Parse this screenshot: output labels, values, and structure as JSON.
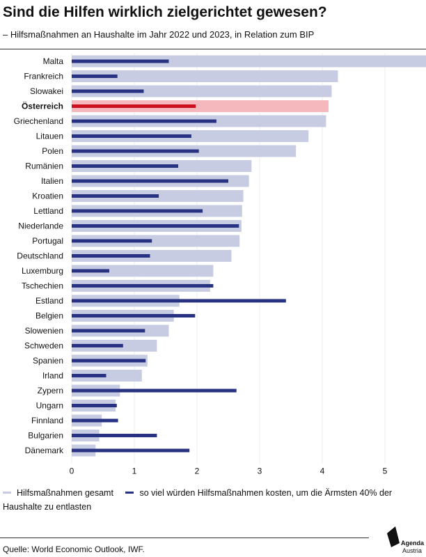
{
  "header": {
    "title": "Sind die Hilfen wirklich zielgerichtet gewesen?",
    "subtitle": "– Hilfsmaßnahmen an Haushalte im Jahr 2022 und 2023, in Relation zum BIP"
  },
  "legend": {
    "total_label": "Hilfsmaßnahmen gesamt",
    "targeted_label": "so viel würden Hilfsmaßnahmen kosten, um die Ärmsten 40% der Haushalte zu entlasten"
  },
  "footer": {
    "source": "Quelle: World Economic Outlook, IWF.",
    "logo_line1": "Agenda",
    "logo_line2": "Austria"
  },
  "colors": {
    "total": "#c8cce2",
    "targeted": "#283282",
    "highlight_total": "#f4b8bd",
    "highlight_targeted": "#cc1020",
    "gridline": "#ececf2"
  },
  "chart_data": {
    "type": "bar",
    "orientation": "horizontal",
    "highlight": "Österreich",
    "categories": [
      "Malta",
      "Frankreich",
      "Slowakei",
      "Österreich",
      "Griechenland",
      "Litauen",
      "Polen",
      "Rumänien",
      "Italien",
      "Kroatien",
      "Lettland",
      "Niederlande",
      "Portugal",
      "Deutschland",
      "Luxemburg",
      "Tschechien",
      "Estland",
      "Belgien",
      "Slowenien",
      "Schweden",
      "Spanien",
      "Irland",
      "Zypern",
      "Ungarn",
      "Finnland",
      "Bulgarien",
      "Dänemark"
    ],
    "series": [
      {
        "name": "Hilfsmaßnahmen gesamt",
        "values": [
          5.7,
          4.25,
          4.15,
          4.1,
          4.06,
          3.78,
          3.58,
          2.87,
          2.83,
          2.74,
          2.72,
          2.71,
          2.68,
          2.55,
          2.26,
          2.21,
          1.72,
          1.63,
          1.55,
          1.36,
          1.21,
          1.12,
          0.77,
          0.7,
          0.48,
          0.44,
          0.38
        ]
      },
      {
        "name": "so viel würden Hilfsmaßnahmen kosten, um die Ärmsten 40% der Haushalte zu entlasten",
        "values": [
          1.55,
          0.73,
          1.15,
          1.98,
          2.31,
          1.91,
          2.03,
          1.7,
          2.5,
          1.39,
          2.09,
          2.67,
          1.28,
          1.25,
          0.6,
          2.26,
          3.42,
          1.97,
          1.17,
          0.82,
          1.18,
          0.55,
          2.63,
          0.72,
          0.74,
          1.36,
          1.88
        ]
      }
    ],
    "xticks": [
      0,
      1,
      2,
      3,
      4,
      5
    ],
    "xlim": [
      0,
      5.7
    ],
    "grid": true,
    "legend_position": "bottom"
  }
}
